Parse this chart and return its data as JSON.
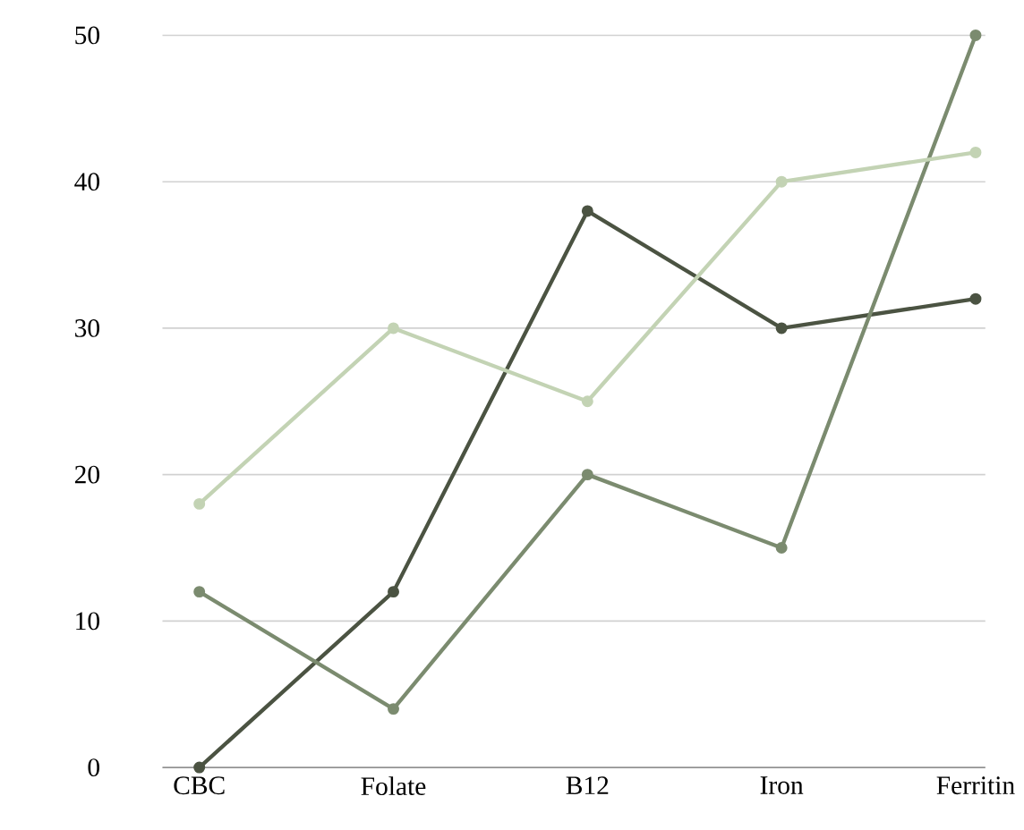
{
  "chart_data": {
    "type": "line",
    "categories": [
      "CBC",
      "Folate",
      "B12",
      "Iron",
      "Ferritin"
    ],
    "series": [
      {
        "color": "#4b5342",
        "values": [
          0,
          12,
          38,
          30,
          32
        ]
      },
      {
        "color": "#7b8b6f",
        "values": [
          12,
          4,
          20,
          15,
          50
        ]
      },
      {
        "color": "#c3d3b4",
        "values": [
          18,
          30,
          25,
          40,
          42
        ]
      }
    ],
    "ylim": [
      0,
      50
    ],
    "yticks": [
      0,
      10,
      20,
      30,
      40,
      50
    ],
    "grid": "y",
    "marker": "circle",
    "line_style": "solid"
  }
}
